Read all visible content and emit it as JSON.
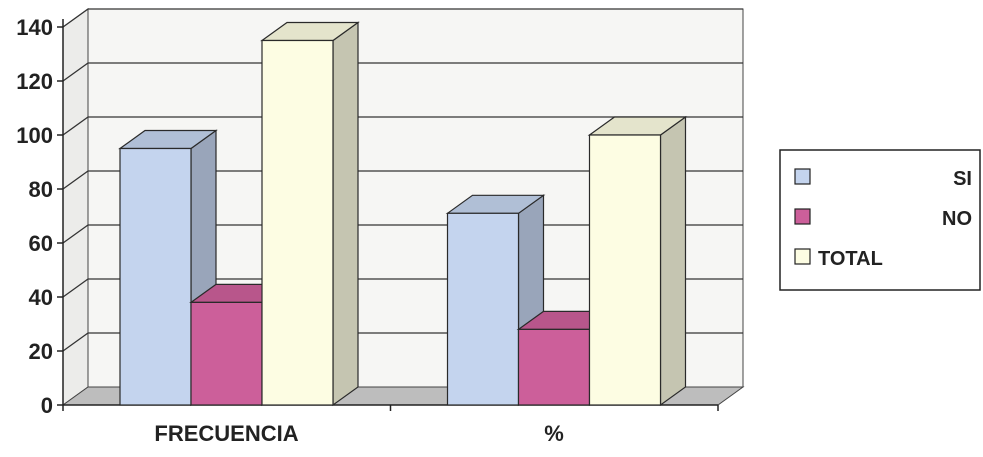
{
  "chart_data": {
    "type": "bar",
    "categories": [
      "FRECUENCIA",
      "%"
    ],
    "series": [
      {
        "name": "SI",
        "values": [
          95,
          71
        ],
        "color": "#c4d4ee"
      },
      {
        "name": "NO",
        "values": [
          38,
          28
        ],
        "color": "#cc5f9a"
      },
      {
        "name": "TOTAL",
        "values": [
          135,
          100
        ],
        "color": "#fdfde3"
      }
    ],
    "yticks": [
      0,
      20,
      40,
      60,
      80,
      100,
      120,
      140
    ],
    "ylim": [
      0,
      140
    ],
    "grid": true,
    "legend": "right",
    "three_d": true,
    "title": "",
    "xlabel": "",
    "ylabel": ""
  }
}
